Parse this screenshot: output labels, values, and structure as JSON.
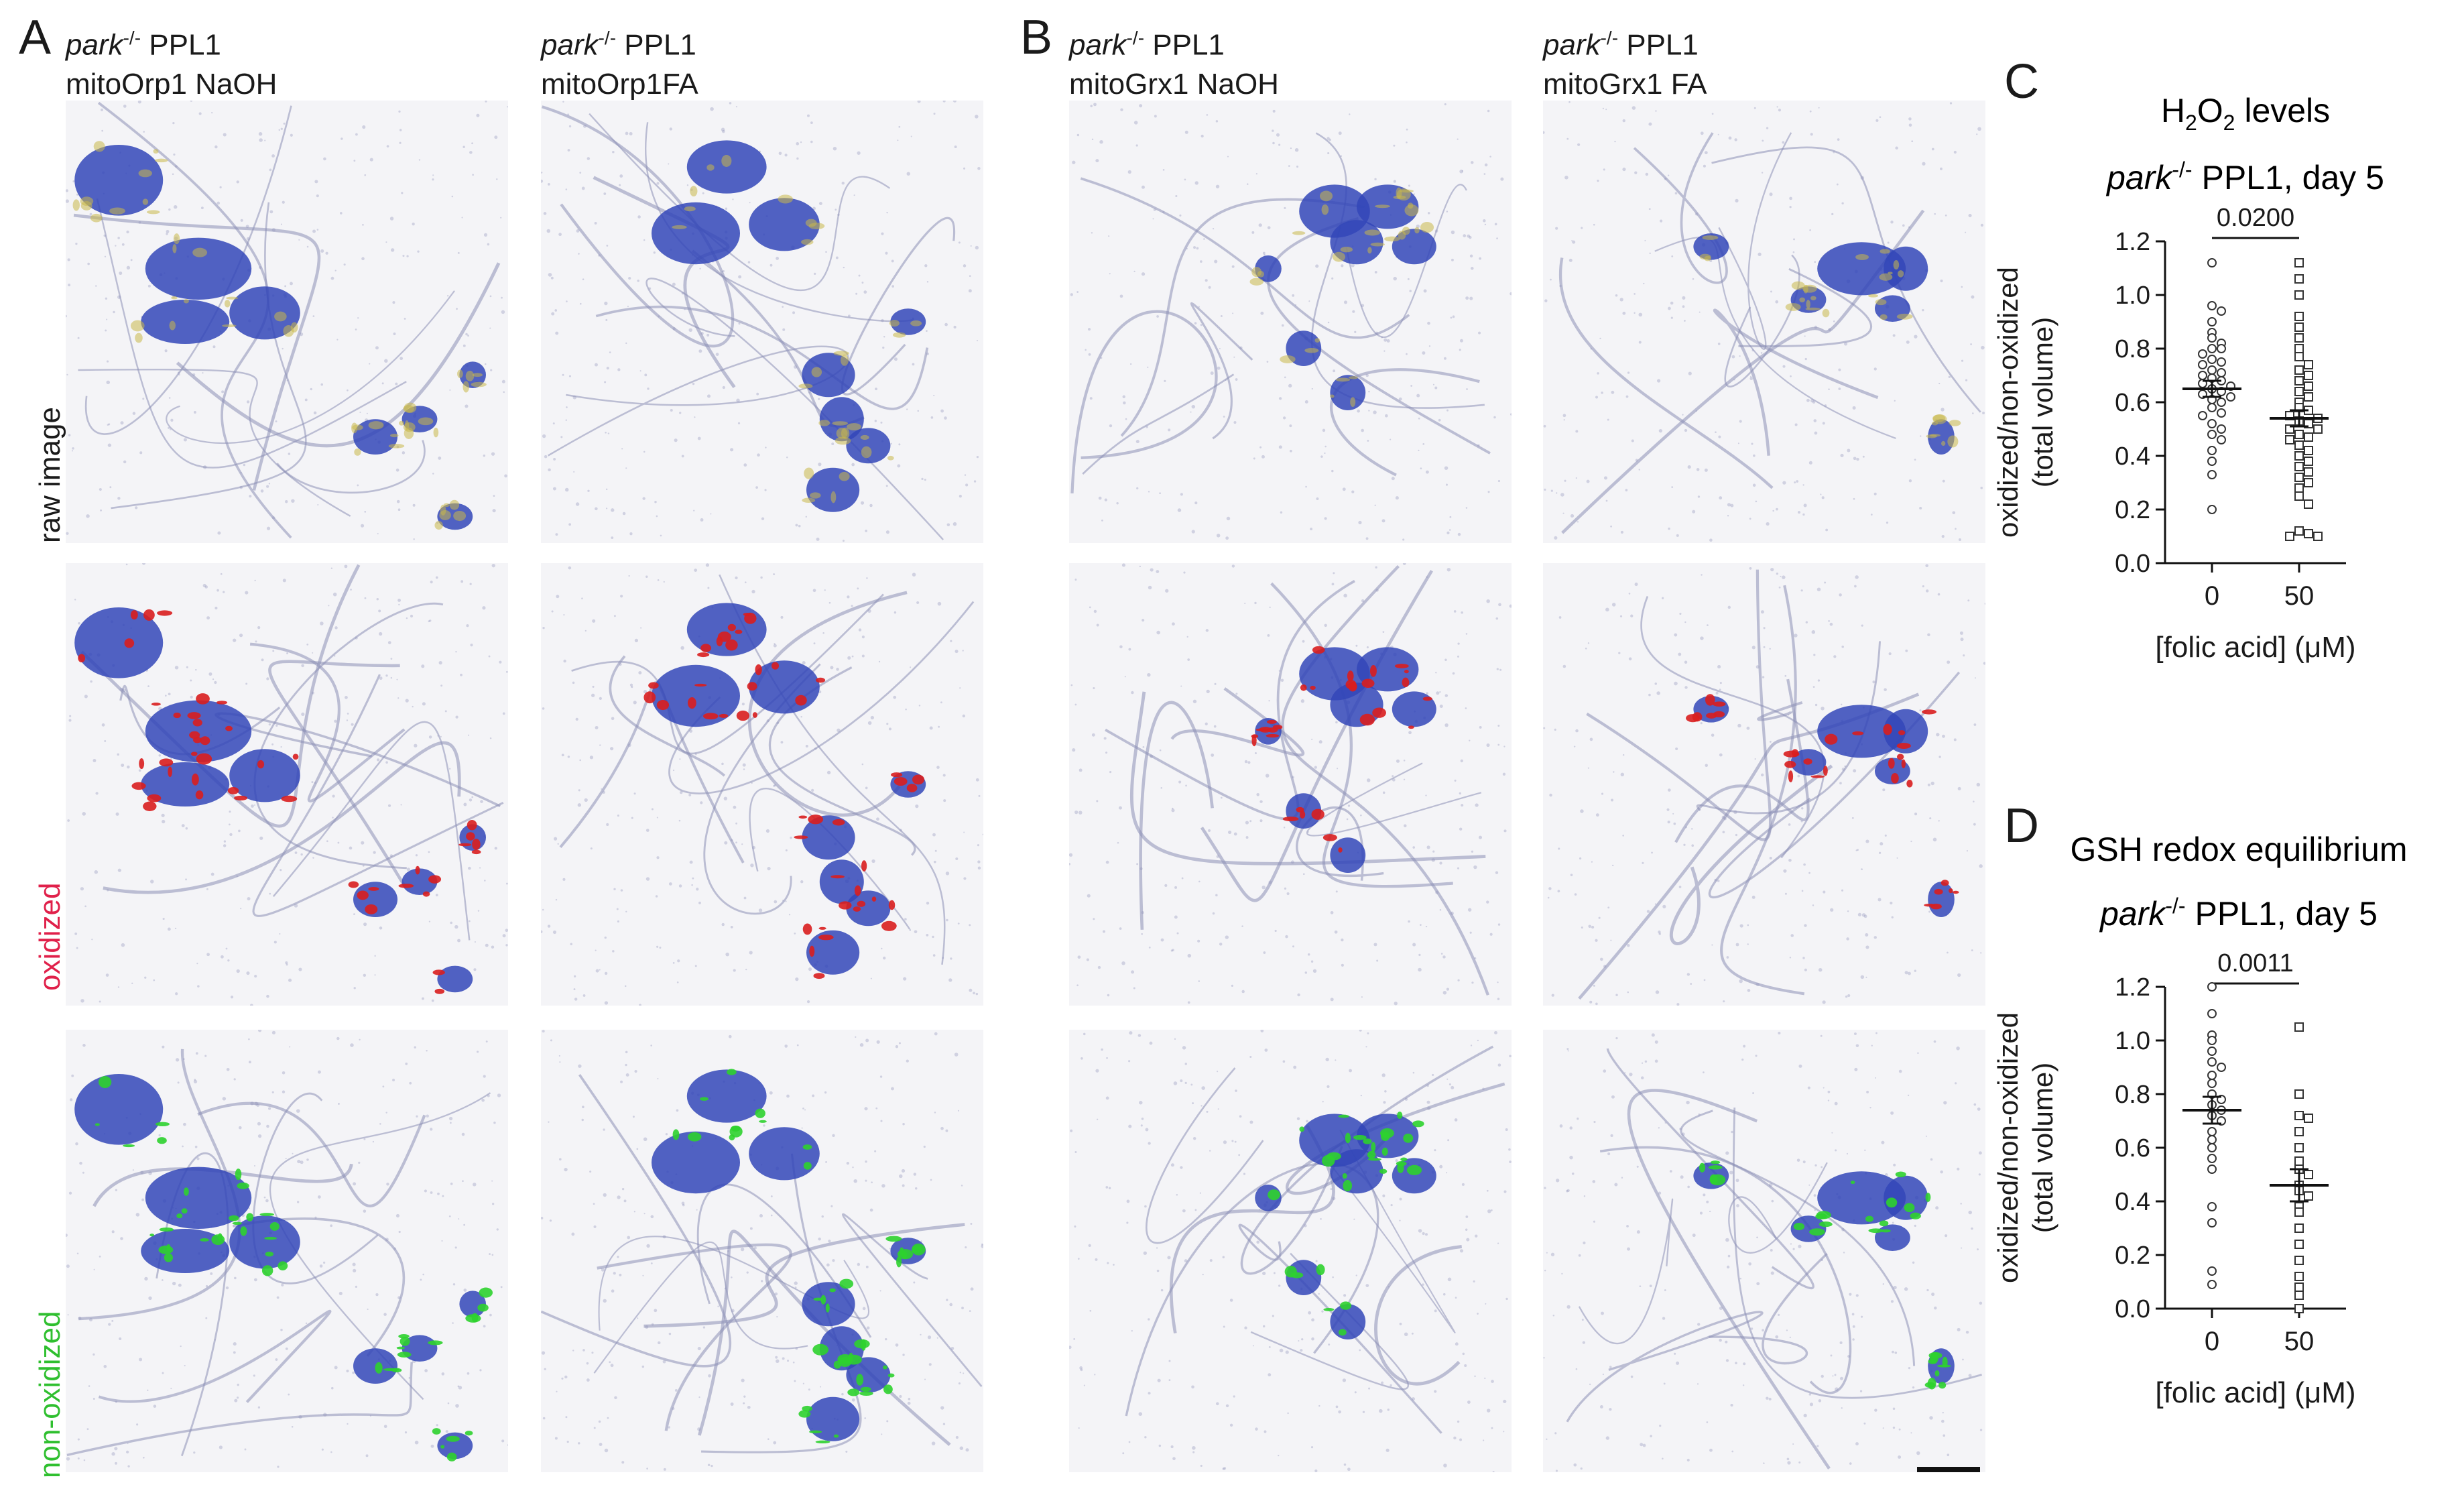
{
  "panel_letters": {
    "a": "A",
    "b": "B",
    "c": "C",
    "d": "D"
  },
  "genotype_prefix": "park",
  "genotype_sup": "-/-",
  "column_headers": [
    {
      "genotype": "park",
      "sup": "-/-",
      "cell": "PPL1",
      "condition": "mitoOrp1 NaOH"
    },
    {
      "genotype": "park",
      "sup": "-/-",
      "cell": "PPL1",
      "condition": "mitoOrp1FA"
    },
    {
      "genotype": "park",
      "sup": "-/-",
      "cell": "PPL1",
      "condition": "mitoGrx1 NaOH"
    },
    {
      "genotype": "park",
      "sup": "-/-",
      "cell": "PPL1",
      "condition": "mitoGrx1 FA"
    }
  ],
  "row_labels": [
    {
      "text": "raw image",
      "color": "#1a1a1a"
    },
    {
      "text": "oxidized",
      "color": "#e0204a"
    },
    {
      "text": "non-oxidized",
      "color": "#2fbf2f"
    }
  ],
  "colors": {
    "cell_blue": "#3346b8",
    "neurite": "#8d8fb6",
    "yellow": "#c9b84a",
    "red": "#d91e1e",
    "green": "#2ed12e",
    "text": "#1a1a1a"
  },
  "chart_data": [
    {
      "type": "scatter",
      "title_line1": "H2O2 levels",
      "title_line1_parts": {
        "a": "H",
        "sub1": "2",
        "b": "O",
        "sub2": "2",
        "c": " levels"
      },
      "title_line2": {
        "genotype": "park",
        "sup": "-/-",
        "rest": " PPL1, day 5"
      },
      "ylabel_line1": "oxidized/non-oxidized",
      "ylabel_line2": "(total volume)",
      "xlabel": "[folic acid] (μM)",
      "categories": [
        "0",
        "50"
      ],
      "ylim": [
        0,
        1.2
      ],
      "yticks": [
        "0.0",
        "0.2",
        "0.4",
        "0.6",
        "0.8",
        "1.0",
        "1.2"
      ],
      "significance": "0.0200",
      "series": [
        {
          "marker": "circle",
          "mean": 0.65,
          "sem": 0.03,
          "values": [
            1.12,
            0.96,
            0.94,
            0.9,
            0.86,
            0.84,
            0.82,
            0.8,
            0.8,
            0.78,
            0.76,
            0.75,
            0.74,
            0.72,
            0.71,
            0.7,
            0.69,
            0.68,
            0.67,
            0.66,
            0.65,
            0.64,
            0.63,
            0.62,
            0.61,
            0.6,
            0.58,
            0.56,
            0.55,
            0.52,
            0.5,
            0.48,
            0.46,
            0.42,
            0.38,
            0.33,
            0.2
          ]
        },
        {
          "marker": "square",
          "mean": 0.54,
          "sem": 0.03,
          "values": [
            1.12,
            1.06,
            1.0,
            0.92,
            0.88,
            0.84,
            0.8,
            0.77,
            0.74,
            0.72,
            0.7,
            0.68,
            0.66,
            0.64,
            0.62,
            0.6,
            0.58,
            0.57,
            0.55,
            0.54,
            0.53,
            0.52,
            0.5,
            0.5,
            0.48,
            0.47,
            0.46,
            0.44,
            0.42,
            0.4,
            0.38,
            0.36,
            0.34,
            0.32,
            0.3,
            0.28,
            0.25,
            0.22,
            0.12,
            0.11,
            0.1,
            0.1
          ]
        }
      ]
    },
    {
      "type": "scatter",
      "title_line1": "GSH redox equilibrium",
      "title_line2": {
        "genotype": "park",
        "sup": "-/-",
        "rest": " PPL1, day 5"
      },
      "ylabel_line1": "oxidized/non-oxidized",
      "ylabel_line2": "(total volume)",
      "xlabel": "[folic acid] (μM)",
      "categories": [
        "0",
        "50"
      ],
      "ylim": [
        0,
        1.2
      ],
      "yticks": [
        "0.0",
        "0.2",
        "0.4",
        "0.6",
        "0.8",
        "1.0",
        "1.2"
      ],
      "significance": "0.0011",
      "series": [
        {
          "marker": "circle",
          "mean": 0.74,
          "sem": 0.05,
          "values": [
            1.2,
            1.1,
            1.02,
            1.0,
            0.96,
            0.92,
            0.9,
            0.87,
            0.84,
            0.8,
            0.78,
            0.76,
            0.74,
            0.72,
            0.7,
            0.66,
            0.63,
            0.6,
            0.56,
            0.52,
            0.38,
            0.32,
            0.14,
            0.09
          ]
        },
        {
          "marker": "square",
          "mean": 0.46,
          "sem": 0.06,
          "values": [
            1.05,
            0.8,
            0.72,
            0.71,
            0.66,
            0.6,
            0.55,
            0.52,
            0.5,
            0.46,
            0.44,
            0.42,
            0.38,
            0.36,
            0.3,
            0.24,
            0.18,
            0.12,
            0.08,
            0.05,
            0.0
          ]
        }
      ]
    }
  ]
}
